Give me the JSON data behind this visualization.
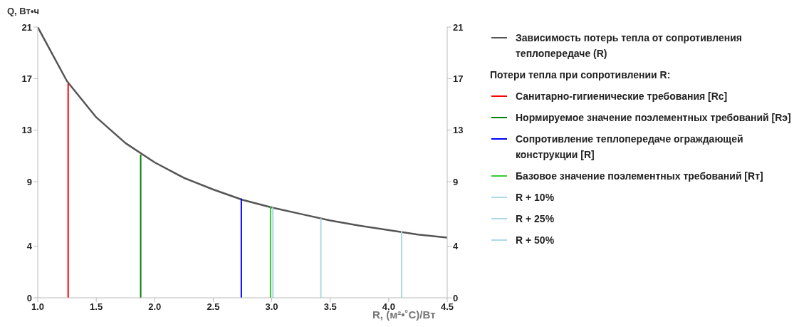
{
  "chart_data": {
    "type": "line",
    "xlabel": "R, (м²•˚C)/Вт",
    "ylabel": "Q, Вт•ч",
    "annotations": [
      "Потери тепла при сопротивлении R:"
    ],
    "xlim": [
      1,
      4.5
    ],
    "xticks": [
      {
        "value": 1,
        "label": "1.0"
      },
      {
        "value": 1.5,
        "label": "1.5"
      },
      {
        "value": 2,
        "label": "2.0"
      },
      {
        "value": 2.5,
        "label": "2.5"
      },
      {
        "value": 3,
        "label": "3.0"
      },
      {
        "value": 3.5,
        "label": "3.5"
      },
      {
        "value": 4,
        "label": "4.0"
      },
      {
        "value": 4.5,
        "label": "4.5"
      }
    ],
    "ylim": [
      0,
      21
    ],
    "yticks": [
      0,
      4,
      9,
      13,
      17,
      21
    ],
    "y2lim": [
      0,
      21
    ],
    "y2ticks": [
      0,
      4,
      9,
      13,
      17,
      21
    ],
    "grid": false,
    "legend": "right",
    "series": [
      {
        "name": "Зависимость потерь тепла от сопротивления теплопередаче (R)",
        "color": "#555555",
        "x": [
          1,
          1.25,
          1.5,
          1.75,
          2,
          2.25,
          2.5,
          2.75,
          3,
          3.25,
          3.5,
          3.75,
          4,
          4.25,
          4.5
        ],
        "values": [
          21,
          16.8,
          14,
          12,
          10.5,
          9.3,
          8.4,
          7.6,
          7,
          6.5,
          6,
          5.6,
          5.25,
          4.9,
          4.67
        ]
      },
      {
        "name": "Санитарно-гигиенические требования [Rc]",
        "color": "#ff0000",
        "x": [
          1.26,
          1.26
        ],
        "values": [
          0,
          16.6
        ]
      },
      {
        "name": "Нормируемое значение поэлементных требований [Rэ]",
        "color": "#008000",
        "x": [
          1.88,
          1.88
        ],
        "values": [
          0,
          11.1
        ]
      },
      {
        "name": "Сопротивление теплопередаче ограждающей конструкции [R]",
        "color": "#0000ff",
        "x": [
          2.74,
          2.74
        ],
        "values": [
          0,
          7.7
        ]
      },
      {
        "name": "Базовое значение поэлементных требований [Rт]",
        "color": "#33cc33",
        "x": [
          2.99,
          2.99
        ],
        "values": [
          0,
          7.05
        ]
      },
      {
        "name": "R + 10%",
        "color": "#add8e6",
        "x": [
          3.01,
          3.01
        ],
        "values": [
          0,
          7
        ]
      },
      {
        "name": "R + 25%",
        "color": "#add8e6",
        "x": [
          3.42,
          3.42
        ],
        "values": [
          0,
          6.17
        ]
      },
      {
        "name": "R + 50%",
        "color": "#add8e6",
        "x": [
          4.11,
          4.11
        ],
        "values": [
          0,
          5.18
        ]
      }
    ]
  }
}
